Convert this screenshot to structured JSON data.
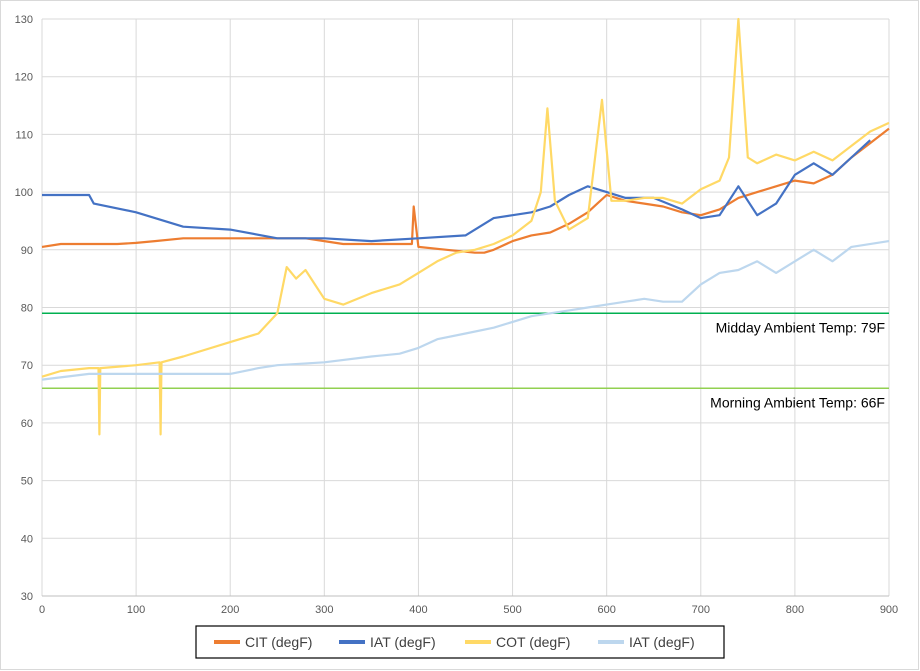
{
  "chart_data": {
    "type": "line",
    "title": "",
    "xlabel": "",
    "ylabel": "",
    "xlim": [
      0,
      900
    ],
    "ylim": [
      30,
      130
    ],
    "xticks": [
      0,
      100,
      200,
      300,
      400,
      500,
      600,
      700,
      800,
      900
    ],
    "yticks": [
      30,
      40,
      50,
      60,
      70,
      80,
      90,
      100,
      110,
      120,
      130
    ],
    "grid": true,
    "legend_position": "bottom",
    "series": [
      {
        "name": "CIT (degF)",
        "color": "#ED7D31",
        "x": [
          0,
          20,
          50,
          80,
          100,
          120,
          150,
          200,
          250,
          280,
          300,
          320,
          350,
          380,
          393,
          395,
          400,
          430,
          460,
          470,
          480,
          500,
          520,
          540,
          560,
          580,
          590,
          600,
          620,
          640,
          660,
          680,
          700,
          720,
          740,
          760,
          780,
          800,
          820,
          840,
          860,
          880,
          900
        ],
        "values": [
          90.5,
          91.0,
          91.0,
          91.0,
          91.2,
          91.5,
          92.0,
          92.0,
          92.0,
          92.0,
          91.5,
          91.0,
          91.0,
          91.0,
          91.0,
          97.5,
          90.5,
          90.0,
          89.5,
          89.5,
          90.0,
          91.5,
          92.5,
          93.0,
          94.5,
          96.5,
          98.0,
          99.5,
          98.5,
          98.0,
          97.5,
          96.5,
          96.0,
          97.0,
          99.0,
          100.0,
          101.0,
          102.0,
          101.5,
          103.0,
          106.0,
          108.5,
          111.0
        ]
      },
      {
        "name": "IAT (degF)",
        "color": "#4472C4",
        "x": [
          0,
          50,
          55,
          100,
          150,
          200,
          250,
          300,
          350,
          400,
          450,
          480,
          500,
          520,
          540,
          560,
          580,
          600,
          620,
          650,
          680,
          700,
          720,
          740,
          760,
          780,
          800,
          820,
          840,
          860,
          880
        ],
        "values": [
          99.5,
          99.5,
          98.0,
          96.5,
          94.0,
          93.5,
          92.0,
          92.0,
          91.5,
          92.0,
          92.5,
          95.5,
          96.0,
          96.5,
          97.5,
          99.5,
          101.0,
          100.0,
          99.0,
          99.0,
          97.0,
          95.5,
          96.0,
          101.0,
          96.0,
          98.0,
          103.0,
          105.0,
          103.0,
          106.0,
          109.0
        ]
      },
      {
        "name": "COT (degF)",
        "color": "#FFD966",
        "x": [
          0,
          20,
          50,
          60,
          61,
          62,
          100,
          125,
          126,
          127,
          150,
          200,
          230,
          250,
          260,
          270,
          280,
          300,
          320,
          350,
          380,
          400,
          420,
          440,
          460,
          480,
          500,
          520,
          530,
          537,
          545,
          560,
          580,
          595,
          605,
          620,
          640,
          660,
          680,
          700,
          720,
          730,
          740,
          750,
          760,
          780,
          800,
          820,
          840,
          860,
          880,
          900
        ],
        "values": [
          68.0,
          69.0,
          69.5,
          69.5,
          58.0,
          69.5,
          70.0,
          70.5,
          58.0,
          70.5,
          71.5,
          74.0,
          75.5,
          79.0,
          87.0,
          85.0,
          86.5,
          81.5,
          80.5,
          82.5,
          84.0,
          86.0,
          88.0,
          89.5,
          90.0,
          91.0,
          92.5,
          95.0,
          100.0,
          114.5,
          98.5,
          93.5,
          95.5,
          116.0,
          98.5,
          98.5,
          99.0,
          99.0,
          98.0,
          100.5,
          102.0,
          106.0,
          130.0,
          106.0,
          105.0,
          106.5,
          105.5,
          107.0,
          105.5,
          108.0,
          110.5,
          112.0
        ]
      },
      {
        "name": "IAT (degF)",
        "color": "#BDD7EE",
        "x": [
          0,
          50,
          100,
          150,
          200,
          230,
          250,
          300,
          350,
          380,
          400,
          420,
          450,
          480,
          500,
          520,
          540,
          560,
          580,
          600,
          620,
          640,
          660,
          680,
          700,
          720,
          740,
          760,
          780,
          800,
          820,
          840,
          860,
          900
        ],
        "values": [
          67.5,
          68.5,
          68.5,
          68.5,
          68.5,
          69.5,
          70.0,
          70.5,
          71.5,
          72.0,
          73.0,
          74.5,
          75.5,
          76.5,
          77.5,
          78.5,
          79.0,
          79.5,
          80.0,
          80.5,
          81.0,
          81.5,
          81.0,
          81.0,
          84.0,
          86.0,
          86.5,
          88.0,
          86.0,
          88.0,
          90.0,
          88.0,
          90.5,
          91.5
        ]
      }
    ],
    "reference_lines": [
      {
        "label": "Midday Ambient Temp: 79F",
        "value": 79,
        "color": "#00B050"
      },
      {
        "label": "Morning Ambient Temp: 66F",
        "value": 66,
        "color": "#92D050"
      }
    ]
  }
}
